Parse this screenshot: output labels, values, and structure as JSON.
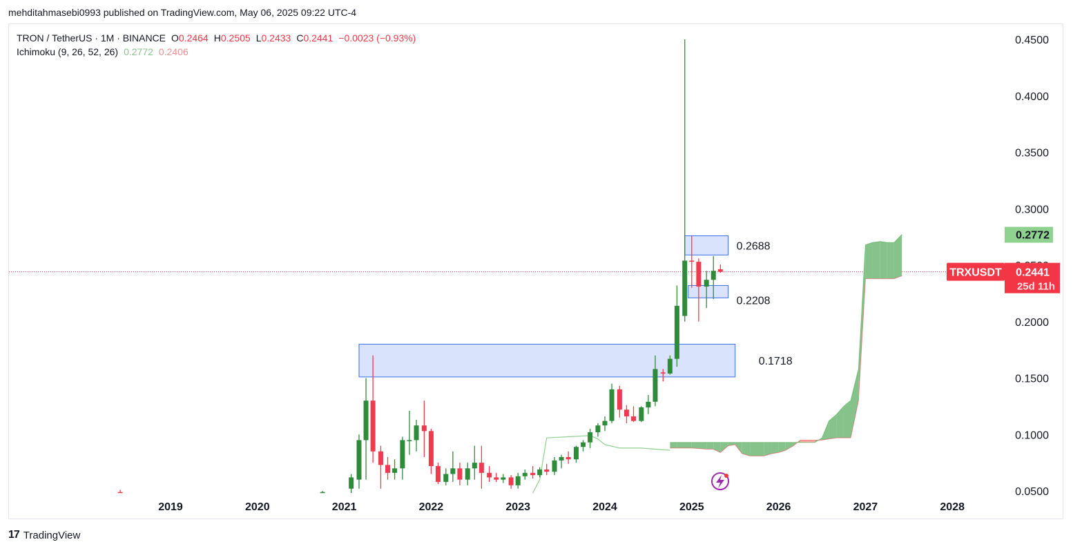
{
  "publish_line": "mehditahmasebi0993 published on TradingView.com, May 06, 2025 09:22 UTC-4",
  "legend": {
    "symbol": "TRON / TetherUS · 1M · BINANCE",
    "o_label": "O",
    "o_value": "0.2464",
    "h_label": "H",
    "h_value": "0.2505",
    "l_label": "L",
    "l_value": "0.2433",
    "c_label": "C",
    "c_value": "0.2441",
    "change": "−0.0023 (−0.93%)",
    "indicator": "Ichimoku (9, 26, 52, 26)",
    "ind_value_1": "0.2772",
    "ind_value_2": "0.2406"
  },
  "footer": {
    "brand": "TradingView",
    "logo": "17"
  },
  "colors": {
    "up": "#2e8b3a",
    "down": "#ef3b4f",
    "box_fill": "#d5e0fb",
    "box_stroke": "#3a6ee8",
    "cloud_up": "#86c38a",
    "cloud_down": "#f6a6a1",
    "lagging": "#8fd18f",
    "price_line": "#f23645"
  },
  "chart_data": {
    "type": "candlestick",
    "symbol": "TRXUSDT",
    "interval": "1M",
    "y_axis": {
      "min": 0.05,
      "max": 0.45,
      "ticks": [
        "0.4500",
        "0.4000",
        "0.3500",
        "0.3000",
        "0.2500",
        "0.2000",
        "0.1500",
        "0.1000",
        "0.0500"
      ]
    },
    "x_axis": {
      "ticks": [
        "2019",
        "2020",
        "2021",
        "2022",
        "2023",
        "2024",
        "2025",
        "2026",
        "2027",
        "2028"
      ]
    },
    "last_price": {
      "label": "TRXUSDT",
      "value": "0.2441",
      "countdown": "25d 11h"
    },
    "axis_badges": [
      {
        "value": "0.2772"
      },
      {
        "value": "0.2406"
      }
    ],
    "zones": [
      {
        "label": "0.2688",
        "top": 0.276,
        "bottom": 0.259,
        "start": 2024.92,
        "end": 2025.42
      },
      {
        "label": "0.2208",
        "top": 0.232,
        "bottom": 0.221,
        "start": 2024.96,
        "end": 2025.42
      },
      {
        "label": "0.1718",
        "top": 0.18,
        "bottom": 0.151,
        "start": 2021.17,
        "end": 2025.5
      }
    ],
    "candles": [
      {
        "t": 2018.42,
        "o": 0.049,
        "h": 0.051,
        "l": 0.046,
        "c": 0.048
      },
      {
        "t": 2020.75,
        "o": 0.049,
        "h": 0.05,
        "l": 0.046,
        "c": 0.049
      },
      {
        "t": 2021.08,
        "o": 0.052,
        "h": 0.065,
        "l": 0.048,
        "c": 0.062
      },
      {
        "t": 2021.17,
        "o": 0.06,
        "h": 0.1,
        "l": 0.052,
        "c": 0.095
      },
      {
        "t": 2021.25,
        "o": 0.095,
        "h": 0.15,
        "l": 0.06,
        "c": 0.13
      },
      {
        "t": 2021.33,
        "o": 0.13,
        "h": 0.17,
        "l": 0.075,
        "c": 0.085
      },
      {
        "t": 2021.42,
        "o": 0.085,
        "h": 0.09,
        "l": 0.052,
        "c": 0.073
      },
      {
        "t": 2021.5,
        "o": 0.073,
        "h": 0.08,
        "l": 0.06,
        "c": 0.066
      },
      {
        "t": 2021.58,
        "o": 0.066,
        "h": 0.078,
        "l": 0.06,
        "c": 0.07
      },
      {
        "t": 2021.67,
        "o": 0.07,
        "h": 0.098,
        "l": 0.06,
        "c": 0.095
      },
      {
        "t": 2021.75,
        "o": 0.095,
        "h": 0.121,
        "l": 0.082,
        "c": 0.095
      },
      {
        "t": 2021.83,
        "o": 0.095,
        "h": 0.113,
        "l": 0.085,
        "c": 0.108
      },
      {
        "t": 2021.92,
        "o": 0.108,
        "h": 0.13,
        "l": 0.08,
        "c": 0.103
      },
      {
        "t": 2022.0,
        "o": 0.103,
        "h": 0.105,
        "l": 0.065,
        "c": 0.072
      },
      {
        "t": 2022.08,
        "o": 0.072,
        "h": 0.075,
        "l": 0.056,
        "c": 0.058
      },
      {
        "t": 2022.17,
        "o": 0.058,
        "h": 0.07,
        "l": 0.055,
        "c": 0.065
      },
      {
        "t": 2022.25,
        "o": 0.065,
        "h": 0.085,
        "l": 0.058,
        "c": 0.07
      },
      {
        "t": 2022.33,
        "o": 0.07,
        "h": 0.075,
        "l": 0.055,
        "c": 0.06
      },
      {
        "t": 2022.42,
        "o": 0.06,
        "h": 0.075,
        "l": 0.055,
        "c": 0.07
      },
      {
        "t": 2022.5,
        "o": 0.07,
        "h": 0.09,
        "l": 0.06,
        "c": 0.075
      },
      {
        "t": 2022.58,
        "o": 0.075,
        "h": 0.09,
        "l": 0.052,
        "c": 0.066
      },
      {
        "t": 2022.67,
        "o": 0.066,
        "h": 0.072,
        "l": 0.058,
        "c": 0.062
      },
      {
        "t": 2022.75,
        "o": 0.062,
        "h": 0.066,
        "l": 0.058,
        "c": 0.06
      },
      {
        "t": 2022.83,
        "o": 0.06,
        "h": 0.065,
        "l": 0.057,
        "c": 0.062
      },
      {
        "t": 2022.92,
        "o": 0.062,
        "h": 0.064,
        "l": 0.052,
        "c": 0.055
      },
      {
        "t": 2023.0,
        "o": 0.055,
        "h": 0.066,
        "l": 0.052,
        "c": 0.063
      },
      {
        "t": 2023.08,
        "o": 0.063,
        "h": 0.069,
        "l": 0.06,
        "c": 0.066
      },
      {
        "t": 2023.17,
        "o": 0.066,
        "h": 0.072,
        "l": 0.061,
        "c": 0.064
      },
      {
        "t": 2023.25,
        "o": 0.064,
        "h": 0.071,
        "l": 0.062,
        "c": 0.069
      },
      {
        "t": 2023.33,
        "o": 0.069,
        "h": 0.074,
        "l": 0.064,
        "c": 0.067
      },
      {
        "t": 2023.42,
        "o": 0.067,
        "h": 0.08,
        "l": 0.064,
        "c": 0.077
      },
      {
        "t": 2023.5,
        "o": 0.077,
        "h": 0.082,
        "l": 0.07,
        "c": 0.08
      },
      {
        "t": 2023.58,
        "o": 0.08,
        "h": 0.085,
        "l": 0.074,
        "c": 0.078
      },
      {
        "t": 2023.67,
        "o": 0.078,
        "h": 0.09,
        "l": 0.075,
        "c": 0.089
      },
      {
        "t": 2023.75,
        "o": 0.089,
        "h": 0.095,
        "l": 0.085,
        "c": 0.093
      },
      {
        "t": 2023.83,
        "o": 0.093,
        "h": 0.105,
        "l": 0.088,
        "c": 0.102
      },
      {
        "t": 2023.92,
        "o": 0.102,
        "h": 0.11,
        "l": 0.098,
        "c": 0.108
      },
      {
        "t": 2024.0,
        "o": 0.108,
        "h": 0.116,
        "l": 0.103,
        "c": 0.112
      },
      {
        "t": 2024.08,
        "o": 0.112,
        "h": 0.145,
        "l": 0.11,
        "c": 0.14
      },
      {
        "t": 2024.17,
        "o": 0.14,
        "h": 0.143,
        "l": 0.115,
        "c": 0.122
      },
      {
        "t": 2024.25,
        "o": 0.122,
        "h": 0.126,
        "l": 0.11,
        "c": 0.116
      },
      {
        "t": 2024.33,
        "o": 0.116,
        "h": 0.125,
        "l": 0.111,
        "c": 0.112
      },
      {
        "t": 2024.42,
        "o": 0.112,
        "h": 0.125,
        "l": 0.111,
        "c": 0.124
      },
      {
        "t": 2024.5,
        "o": 0.124,
        "h": 0.135,
        "l": 0.118,
        "c": 0.129
      },
      {
        "t": 2024.58,
        "o": 0.129,
        "h": 0.17,
        "l": 0.125,
        "c": 0.158
      },
      {
        "t": 2024.67,
        "o": 0.155,
        "h": 0.158,
        "l": 0.147,
        "c": 0.154
      },
      {
        "t": 2024.75,
        "o": 0.154,
        "h": 0.17,
        "l": 0.153,
        "c": 0.167
      },
      {
        "t": 2024.83,
        "o": 0.167,
        "h": 0.232,
        "l": 0.16,
        "c": 0.214
      },
      {
        "t": 2024.92,
        "o": 0.205,
        "h": 0.45,
        "l": 0.2,
        "c": 0.254
      },
      {
        "t": 2025.0,
        "o": 0.254,
        "h": 0.276,
        "l": 0.23,
        "c": 0.253
      },
      {
        "t": 2025.08,
        "o": 0.253,
        "h": 0.256,
        "l": 0.2,
        "c": 0.231
      },
      {
        "t": 2025.17,
        "o": 0.231,
        "h": 0.245,
        "l": 0.212,
        "c": 0.237
      },
      {
        "t": 2025.25,
        "o": 0.237,
        "h": 0.258,
        "l": 0.22,
        "c": 0.245
      },
      {
        "t": 2025.33,
        "o": 0.2464,
        "h": 0.2505,
        "l": 0.2433,
        "c": 0.2441
      }
    ],
    "lagging_span": [
      [
        2023.17,
        0.0
      ],
      [
        2023.25,
        0.06
      ],
      [
        2023.33,
        0.097
      ],
      [
        2023.58,
        0.098
      ],
      [
        2023.83,
        0.099
      ],
      [
        2023.92,
        0.096
      ],
      [
        2024.0,
        0.091
      ],
      [
        2024.17,
        0.088
      ],
      [
        2024.42,
        0.088
      ],
      [
        2024.58,
        0.087
      ],
      [
        2024.75,
        0.086
      ]
    ],
    "cloud": {
      "t": [
        2024.75,
        2024.83,
        2025.0,
        2025.17,
        2025.25,
        2025.33,
        2025.42,
        2025.5,
        2025.58,
        2025.67,
        2025.83,
        2025.92,
        2026.0,
        2026.08,
        2026.17,
        2026.25,
        2026.33,
        2026.42,
        2026.5,
        2026.58,
        2026.67,
        2026.75,
        2026.83,
        2026.92,
        2027.0,
        2027.08,
        2027.17,
        2027.25,
        2027.33,
        2027.42
      ],
      "span_a": [
        0.093,
        0.093,
        0.093,
        0.093,
        0.093,
        0.093,
        0.093,
        0.093,
        0.093,
        0.093,
        0.093,
        0.093,
        0.093,
        0.093,
        0.093,
        0.093,
        0.093,
        0.093,
        0.097,
        0.112,
        0.118,
        0.125,
        0.13,
        0.158,
        0.268,
        0.27,
        0.271,
        0.27,
        0.27,
        0.2772
      ],
      "span_b": [
        0.088,
        0.088,
        0.088,
        0.087,
        0.087,
        0.084,
        0.09,
        0.091,
        0.083,
        0.081,
        0.081,
        0.083,
        0.084,
        0.086,
        0.09,
        0.095,
        0.095,
        0.095,
        0.095,
        0.096,
        0.097,
        0.097,
        0.097,
        0.13,
        0.238,
        0.238,
        0.238,
        0.238,
        0.238,
        0.2406
      ]
    }
  }
}
